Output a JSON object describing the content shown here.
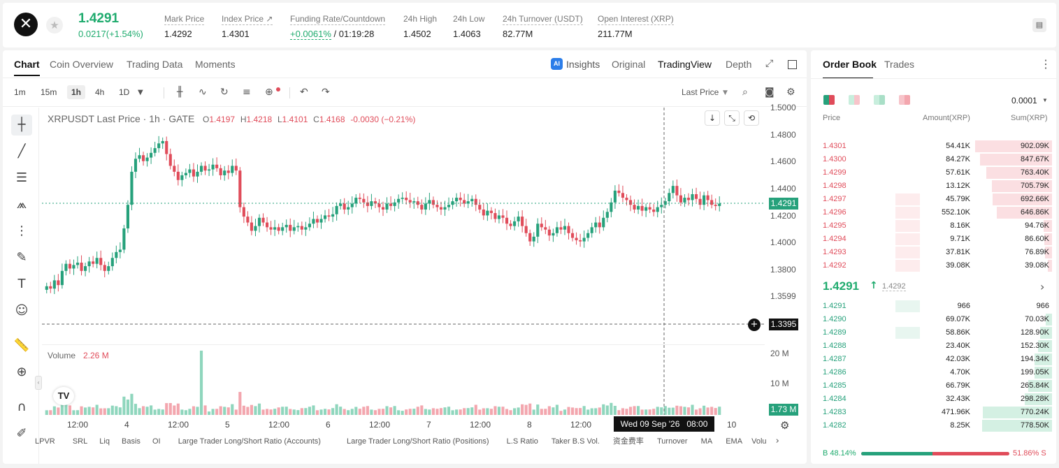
{
  "header": {
    "price": "1.4291",
    "change": "0.0217(+1.54%)",
    "stats": [
      {
        "label": "Mark Price",
        "value": "1.4292"
      },
      {
        "label": "Index Price ↗",
        "value": "1.4301"
      },
      {
        "label": "Funding Rate/Countdown",
        "value": "+0.0061%",
        "value2": " / 01:19:28"
      },
      {
        "label": "24h High",
        "value": "1.4502"
      },
      {
        "label": "24h Low",
        "value": "1.4063"
      },
      {
        "label": "24h Turnover (USDT)",
        "value": "82.77M"
      },
      {
        "label": "Open Interest (XRP)",
        "value": "211.77M"
      }
    ]
  },
  "chart_tabs": [
    "Chart",
    "Coin Overview",
    "Trading Data",
    "Moments"
  ],
  "view_tabs": {
    "insights": "Insights",
    "original": "Original",
    "tradingview": "TradingView",
    "depth": "Depth"
  },
  "timeframes": [
    "1m",
    "15m",
    "1h",
    "4h",
    "1D"
  ],
  "price_mode": "Last Price",
  "legend": {
    "symbol": "XRPUSDT Last Price · 1h · GATE",
    "o_label": "O",
    "o": "1.4197",
    "h_label": "H",
    "h": "1.4218",
    "l_label": "L",
    "l": "1.4101",
    "c_label": "C",
    "c": "1.4168",
    "chg": "-0.0030 (−0.21%)"
  },
  "volume_legend": {
    "label": "Volume",
    "value": "2.26 M"
  },
  "y_ticks": [
    "1.5000",
    "1.4800",
    "1.4600",
    "1.4400",
    "1.4200",
    "1.4000",
    "1.3800",
    "1.3599"
  ],
  "current_price_tag": "1.4291",
  "crosshair_price_tag": "1.3395",
  "volume_ticks": [
    "20 M",
    "10 M"
  ],
  "volume_tag": "1.73 M",
  "x_ticks": [
    "12:00",
    "4",
    "12:00",
    "5",
    "12:00",
    "6",
    "12:00",
    "7",
    "12:00",
    "8",
    "12:00",
    "10"
  ],
  "crosshair_time": "Wed 09 Sep '26   08:00",
  "indicators": [
    "LPVR",
    "SRL",
    "Liq",
    "Basis",
    "OI",
    "Large Trader Long/Short Ratio (Accounts)",
    "Large Trader Long/Short Ratio (Positions)",
    "L.S Ratio",
    "Taker B.S Vol.",
    "资金费率",
    "Turnover",
    "MA",
    "EMA",
    "Volu"
  ],
  "colors": {
    "up": "#26a17b",
    "down": "#e04c5a",
    "up_light": "#8fd6bd",
    "down_light": "#f3a6ae"
  },
  "order_book": {
    "tabs": [
      "Order Book",
      "Trades"
    ],
    "precision": "0.0001",
    "headers": {
      "price": "Price",
      "amount": "Amount(XRP)",
      "sum": "Sum(XRP)"
    },
    "asks": [
      {
        "price": "1.4301",
        "amount": "54.41K",
        "sum": "902.09K",
        "depth": 1.0,
        "own": 0.0
      },
      {
        "price": "1.4300",
        "amount": "84.27K",
        "sum": "847.67K",
        "depth": 0.94,
        "own": 0.0
      },
      {
        "price": "1.4299",
        "amount": "57.61K",
        "sum": "763.40K",
        "depth": 0.85,
        "own": 0.0
      },
      {
        "price": "1.4298",
        "amount": "13.12K",
        "sum": "705.79K",
        "depth": 0.78,
        "own": 0.0
      },
      {
        "price": "1.4297",
        "amount": "45.79K",
        "sum": "692.66K",
        "depth": 0.77,
        "own": 0.3
      },
      {
        "price": "1.4296",
        "amount": "552.10K",
        "sum": "646.86K",
        "depth": 0.72,
        "own": 0.3
      },
      {
        "price": "1.4295",
        "amount": "8.16K",
        "sum": "94.76K",
        "depth": 0.11,
        "own": 0.3
      },
      {
        "price": "1.4294",
        "amount": "9.71K",
        "sum": "86.60K",
        "depth": 0.1,
        "own": 0.3
      },
      {
        "price": "1.4293",
        "amount": "37.81K",
        "sum": "76.89K",
        "depth": 0.09,
        "own": 0.3
      },
      {
        "price": "1.4292",
        "amount": "39.08K",
        "sum": "39.08K",
        "depth": 0.05,
        "own": 0.3
      }
    ],
    "mid_price": "1.4291",
    "mid_arrow": "↑",
    "mid_mark": "1.4292",
    "bids": [
      {
        "price": "1.4291",
        "amount": "966",
        "sum": "966",
        "depth": 0.0,
        "own": 0.3
      },
      {
        "price": "1.4290",
        "amount": "69.07K",
        "sum": "70.03K",
        "depth": 0.08,
        "own": 0.0
      },
      {
        "price": "1.4289",
        "amount": "58.86K",
        "sum": "128.90K",
        "depth": 0.15,
        "own": 0.3
      },
      {
        "price": "1.4288",
        "amount": "23.40K",
        "sum": "152.30K",
        "depth": 0.18,
        "own": 0.0
      },
      {
        "price": "1.4287",
        "amount": "42.03K",
        "sum": "194.34K",
        "depth": 0.23,
        "own": 0.0
      },
      {
        "price": "1.4286",
        "amount": "4.70K",
        "sum": "199.05K",
        "depth": 0.23,
        "own": 0.0
      },
      {
        "price": "1.4285",
        "amount": "66.79K",
        "sum": "265.84K",
        "depth": 0.31,
        "own": 0.0
      },
      {
        "price": "1.4284",
        "amount": "32.43K",
        "sum": "298.28K",
        "depth": 0.35,
        "own": 0.0
      },
      {
        "price": "1.4283",
        "amount": "471.96K",
        "sum": "770.24K",
        "depth": 0.9,
        "own": 0.0
      },
      {
        "price": "1.4282",
        "amount": "8.25K",
        "sum": "778.50K",
        "depth": 0.91,
        "own": 0.0
      }
    ],
    "buy_ratio": "B 48.14%",
    "sell_ratio": "51.86% S",
    "buy_fraction": 0.4814
  }
}
